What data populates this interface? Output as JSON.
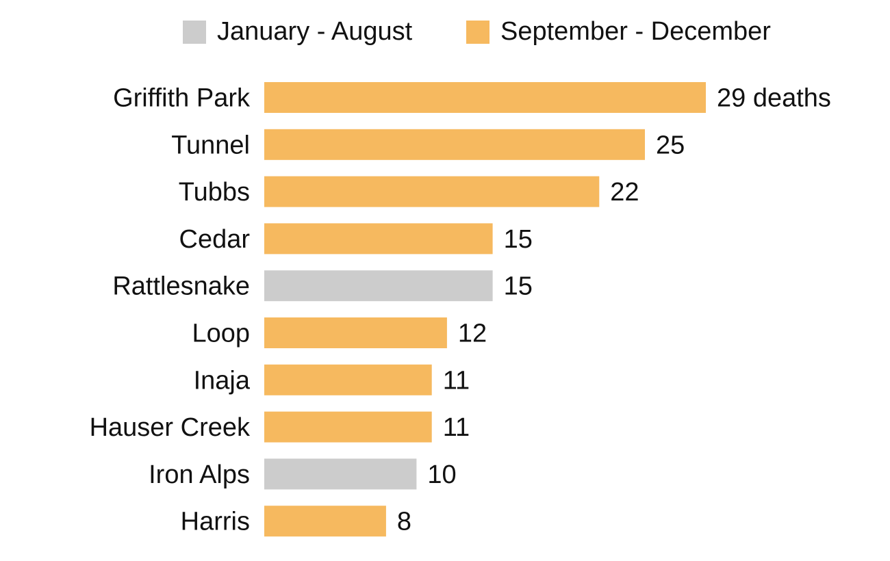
{
  "chart_data": {
    "type": "bar",
    "orientation": "horizontal",
    "categories": [
      "Griffith Park",
      "Tunnel",
      "Tubbs",
      "Cedar",
      "Rattlesnake",
      "Loop",
      "Inaja",
      "Hauser Creek",
      "Iron Alps",
      "Harris"
    ],
    "values": [
      29,
      25,
      22,
      15,
      15,
      12,
      11,
      11,
      10,
      8
    ],
    "value_labels": [
      "29 deaths",
      "25",
      "22",
      "15",
      "15",
      "12",
      "11",
      "11",
      "10",
      "8"
    ],
    "period": [
      "September - December",
      "September - December",
      "September - December",
      "September - December",
      "January - August",
      "September - December",
      "September - December",
      "September - December",
      "January - August",
      "September - December"
    ],
    "legend": [
      {
        "name": "January - August",
        "color": "#cccccc"
      },
      {
        "name": "September - December",
        "color": "#f6b95f"
      }
    ],
    "legend_position": "top",
    "xlim": [
      0,
      29
    ],
    "grid": false,
    "title": "",
    "xlabel": "",
    "ylabel": ""
  }
}
